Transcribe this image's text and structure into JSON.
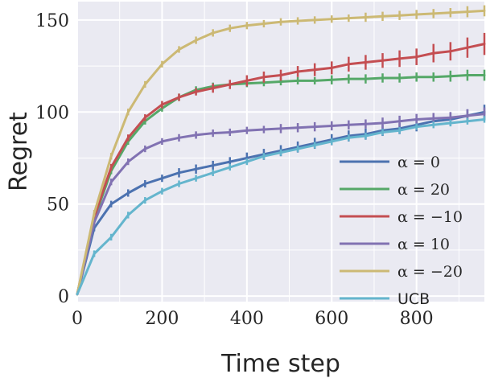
{
  "chart_data": {
    "type": "line",
    "xlabel": "Time step",
    "ylabel": "Regret",
    "xlim": [
      0,
      960
    ],
    "ylim": [
      -3,
      160
    ],
    "xticks": [
      0,
      200,
      400,
      600,
      800
    ],
    "yticks": [
      0,
      50,
      100,
      150
    ],
    "grid": true,
    "legend_position": "bottom-right",
    "x": [
      0,
      40,
      80,
      120,
      160,
      200,
      240,
      280,
      320,
      360,
      400,
      440,
      480,
      520,
      560,
      600,
      640,
      680,
      720,
      760,
      800,
      840,
      880,
      920,
      960
    ],
    "series": [
      {
        "name": "α = 0",
        "color": "#4c72b0",
        "values": [
          1,
          37,
          50,
          56,
          61,
          64,
          67,
          69,
          71,
          73,
          75,
          77,
          79,
          81,
          83,
          85,
          87,
          88,
          90,
          91,
          93,
          95,
          96,
          98,
          100
        ],
        "errors": [
          1,
          1.5,
          1.5,
          2,
          2,
          2,
          2.5,
          2.5,
          2.5,
          2.5,
          3,
          3,
          3,
          3,
          3,
          3,
          3,
          3,
          3,
          3,
          3.5,
          3.5,
          3.5,
          3.5,
          4
        ]
      },
      {
        "name": "α = 20",
        "color": "#55a868",
        "values": [
          1,
          42,
          68,
          84,
          95,
          102,
          108,
          112,
          114,
          115,
          115.5,
          116,
          116.5,
          117,
          117,
          117.5,
          118,
          118,
          118.5,
          118.5,
          119,
          119,
          119.5,
          120,
          120
        ],
        "errors": [
          1,
          1.5,
          1.5,
          1.5,
          1.5,
          1.5,
          2,
          2,
          2,
          2,
          2,
          2,
          2,
          2,
          2,
          2.5,
          2.5,
          2.5,
          2.5,
          2.5,
          2.5,
          2.5,
          3,
          3,
          3
        ]
      },
      {
        "name": "α = −10",
        "color": "#c44e52",
        "values": [
          1,
          43,
          70,
          86,
          97,
          104,
          108,
          111,
          113,
          115,
          117,
          119,
          120,
          122,
          123,
          124,
          126,
          127,
          128,
          129,
          130,
          132,
          133,
          135,
          137
        ],
        "errors": [
          1,
          1.5,
          1.5,
          1.5,
          1.5,
          2,
          2,
          2,
          2.5,
          2.5,
          3,
          3,
          3,
          3,
          3.5,
          3.5,
          4,
          4,
          4,
          4.5,
          4.5,
          5,
          5,
          5.5,
          6
        ]
      },
      {
        "name": "α = 10",
        "color": "#8172b2",
        "values": [
          1,
          40,
          62,
          73,
          80,
          84,
          86,
          87.5,
          88.5,
          89,
          90,
          90.5,
          91,
          91.5,
          92,
          92.5,
          93,
          93.5,
          94,
          95,
          96,
          96.5,
          97,
          98,
          99
        ],
        "errors": [
          1,
          1.5,
          1.5,
          1.5,
          1.5,
          1.5,
          2,
          2,
          2,
          2,
          2,
          2,
          2.5,
          2.5,
          2.5,
          2.5,
          2.5,
          2.5,
          3,
          3,
          3,
          3,
          3,
          3.5,
          3.5
        ]
      },
      {
        "name": "α = −20",
        "color": "#ccb974",
        "values": [
          1,
          45,
          76,
          100,
          115,
          126,
          134,
          139,
          143,
          145.5,
          147,
          148,
          149,
          149.5,
          150,
          150.5,
          151,
          151.5,
          152,
          152.5,
          153,
          153.5,
          154,
          154.5,
          155
        ],
        "errors": [
          1,
          1.5,
          1.5,
          1.5,
          1.5,
          1.5,
          1.5,
          2,
          2,
          2,
          2,
          2,
          2,
          2,
          2,
          2,
          2,
          2.5,
          2.5,
          2.5,
          2.5,
          2.5,
          2.5,
          3,
          3
        ]
      },
      {
        "name": "UCB",
        "color": "#64b5cd",
        "values": [
          1,
          23,
          32,
          44,
          52,
          57,
          61,
          64,
          67,
          70,
          73,
          76,
          78,
          80,
          82,
          84,
          86,
          87,
          89,
          90,
          92,
          93,
          94,
          95,
          96
        ],
        "errors": [
          0.5,
          1,
          1,
          1,
          1,
          1,
          1,
          1,
          1,
          1,
          1,
          1,
          1,
          1,
          1,
          1,
          1,
          1,
          1,
          1,
          1,
          1,
          1,
          1,
          1
        ]
      }
    ]
  }
}
